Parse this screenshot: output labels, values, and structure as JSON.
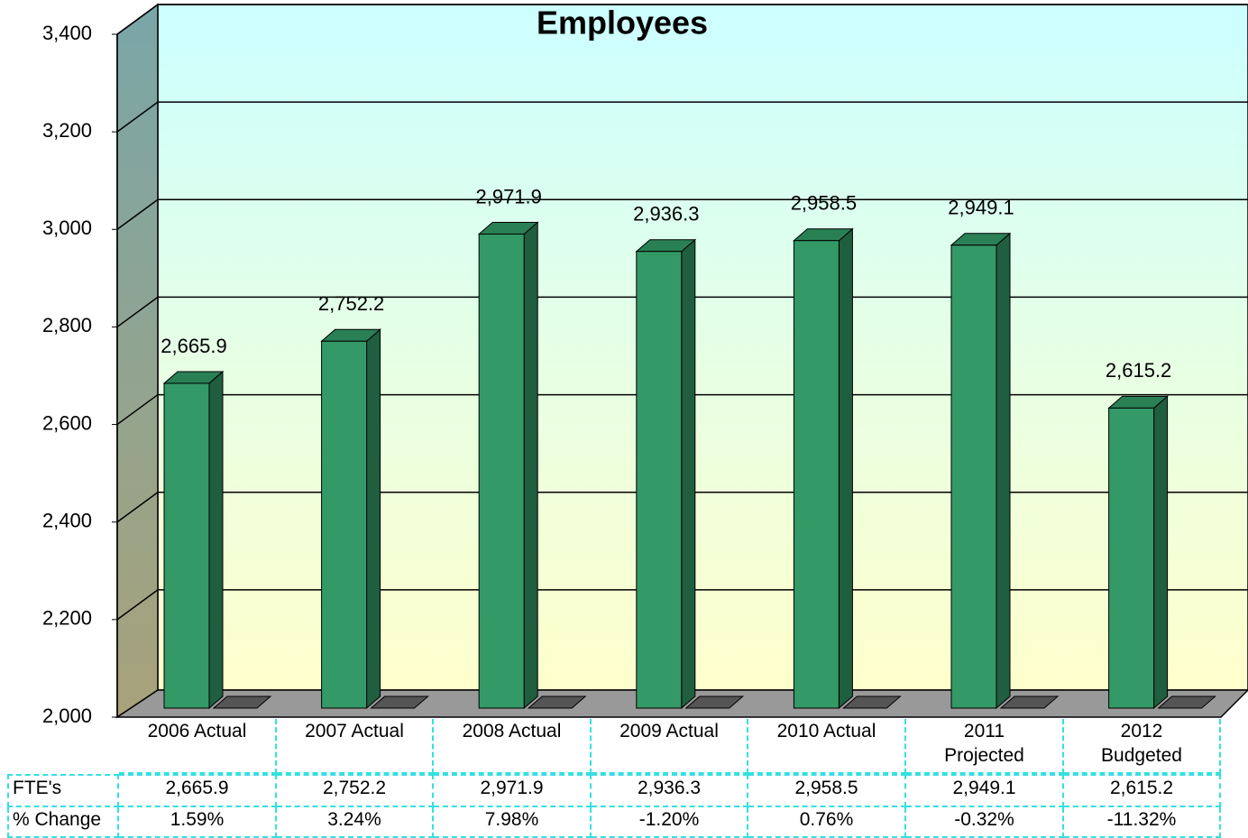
{
  "chart_data": {
    "type": "bar3d",
    "title": "Employees",
    "categories": [
      "2006 Actual",
      "2007 Actual",
      "2008 Actual",
      "2009 Actual",
      "2010 Actual",
      "2011 Projected",
      "2012 Budgeted"
    ],
    "values": [
      2665.9,
      2752.2,
      2971.9,
      2936.3,
      2958.5,
      2949.1,
      2615.2
    ],
    "value_labels": [
      "2,665.9",
      "2,752.2",
      "2,971.9",
      "2,936.3",
      "2,958.5",
      "2,949.1",
      "2,615.2"
    ],
    "color": "#339966",
    "ylim": [
      2000,
      3400
    ],
    "yticks": [
      {
        "value": 2000,
        "label": "2,000"
      },
      {
        "value": 2200,
        "label": "2,200"
      },
      {
        "value": 2400,
        "label": "2,400"
      },
      {
        "value": 2600,
        "label": "2,600"
      },
      {
        "value": 2800,
        "label": "2,800"
      },
      {
        "value": 3000,
        "label": "3,000"
      },
      {
        "value": 3200,
        "label": "3,200"
      },
      {
        "value": 3400,
        "label": "3,400"
      }
    ],
    "grid": true,
    "table": {
      "row_labels": [
        "FTE's",
        "% Change"
      ],
      "pct_change": [
        1.59,
        3.24,
        7.98,
        -1.2,
        0.76,
        -0.32,
        -11.32
      ],
      "pct_change_labels": [
        "1.59%",
        "3.24%",
        "7.98%",
        "-1.20%",
        "0.76%",
        "-0.32%",
        "-11.32%"
      ]
    }
  }
}
